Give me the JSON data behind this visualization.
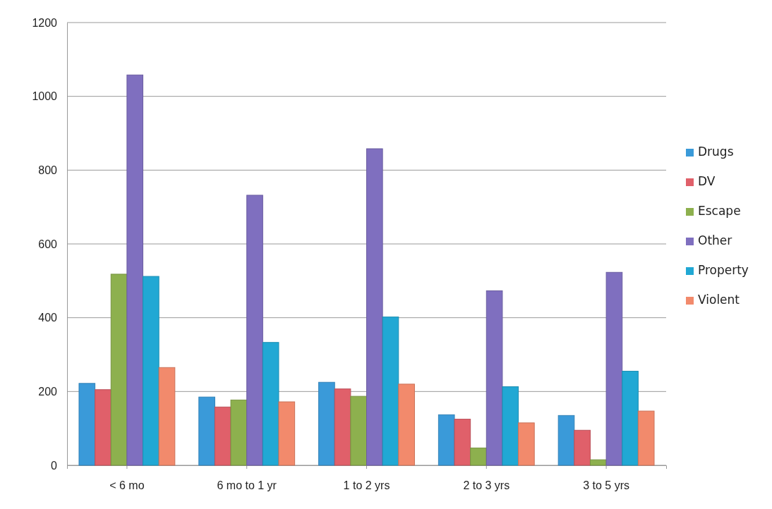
{
  "chart_data": {
    "type": "bar",
    "categories": [
      "< 6 mo",
      "6 mo to 1 yr",
      "1 to 2 yrs",
      "2 to 3 yrs",
      "3 to 5 yrs"
    ],
    "series": [
      {
        "name": "Drugs",
        "color": "#3a9ad9",
        "values": [
          222,
          185,
          225,
          137,
          135
        ]
      },
      {
        "name": "DV",
        "color": "#e0606a",
        "values": [
          205,
          158,
          207,
          125,
          95
        ]
      },
      {
        "name": "Escape",
        "color": "#8db04e",
        "values": [
          518,
          177,
          187,
          47,
          15
        ]
      },
      {
        "name": "Other",
        "color": "#7f6fbf",
        "values": [
          1058,
          732,
          858,
          473,
          523
        ]
      },
      {
        "name": "Property",
        "color": "#21a8d4",
        "values": [
          512,
          333,
          402,
          213,
          255
        ]
      },
      {
        "name": "Violent",
        "color": "#f28a6c",
        "values": [
          265,
          172,
          220,
          115,
          147
        ]
      }
    ],
    "ylim": [
      0,
      1200
    ],
    "yticks": [
      0,
      200,
      400,
      600,
      800,
      1000,
      1200
    ],
    "grid": "y",
    "legend": "right"
  }
}
